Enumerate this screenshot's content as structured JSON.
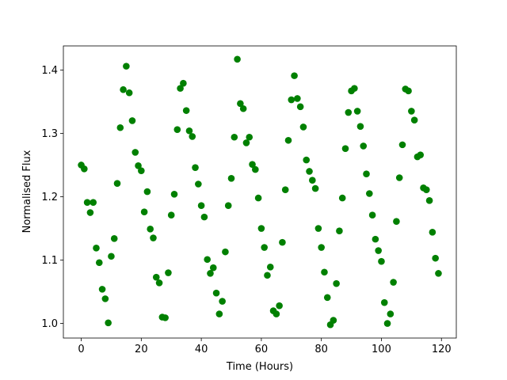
{
  "chart_data": {
    "type": "scatter",
    "xlabel": "Time (Hours)",
    "ylabel": "Normalised Flux",
    "color": "green",
    "x": [
      0,
      1,
      2,
      3,
      4,
      5,
      6,
      7,
      8,
      9,
      10,
      11,
      12,
      13,
      14,
      15,
      16,
      17,
      18,
      19,
      20,
      21,
      22,
      23,
      24,
      25,
      26,
      27,
      28,
      29,
      30,
      31,
      32,
      33,
      34,
      35,
      36,
      37,
      38,
      39,
      40,
      41,
      42,
      43,
      44,
      45,
      46,
      47,
      48,
      49,
      50,
      51,
      52,
      53,
      54,
      55,
      56,
      57,
      58,
      59,
      60,
      61,
      62,
      63,
      64,
      65,
      66,
      67,
      68,
      69,
      70,
      71,
      72,
      73,
      74,
      75,
      76,
      77,
      78,
      79,
      80,
      81,
      82,
      83,
      84,
      85,
      86,
      87,
      88,
      89,
      90,
      91,
      92,
      93,
      94,
      95,
      96,
      97,
      98,
      99,
      100,
      101,
      102,
      103,
      104,
      105,
      106,
      107,
      108,
      109,
      110,
      111,
      112,
      113,
      114,
      115,
      116,
      117,
      118,
      119
    ],
    "y": [
      1.25,
      1.244,
      1.191,
      1.175,
      1.191,
      1.119,
      1.096,
      1.054,
      1.039,
      1.001,
      1.106,
      1.134,
      1.221,
      1.309,
      1.369,
      1.406,
      1.364,
      1.32,
      1.27,
      1.249,
      1.241,
      1.176,
      1.208,
      1.149,
      1.135,
      1.073,
      1.064,
      1.01,
      1.009,
      1.08,
      1.171,
      1.204,
      1.306,
      1.371,
      1.379,
      1.336,
      1.304,
      1.295,
      1.246,
      1.22,
      1.186,
      1.168,
      1.101,
      1.079,
      1.088,
      1.048,
      1.015,
      1.035,
      1.113,
      1.186,
      1.229,
      1.294,
      1.417,
      1.347,
      1.339,
      1.285,
      1.294,
      1.251,
      1.243,
      1.198,
      1.15,
      1.12,
      1.076,
      1.089,
      1.02,
      1.015,
      1.028,
      1.128,
      1.211,
      1.289,
      1.353,
      1.391,
      1.355,
      1.342,
      1.31,
      1.258,
      1.24,
      1.226,
      1.213,
      1.15,
      1.12,
      1.081,
      1.041,
      0.998,
      1.005,
      1.063,
      1.146,
      1.198,
      1.276,
      1.333,
      1.367,
      1.371,
      1.335,
      1.311,
      1.28,
      1.236,
      1.205,
      1.171,
      1.133,
      1.115,
      1.098,
      1.033,
      1.0,
      1.015,
      1.065,
      1.161,
      1.23,
      1.282,
      1.37,
      1.367,
      1.335,
      1.321,
      1.263,
      1.266,
      1.214,
      1.211,
      1.194,
      1.144,
      1.103,
      1.079
    ],
    "xlim": [
      -5.95,
      124.95
    ],
    "ylim": [
      0.977,
      1.438
    ],
    "xticks": [
      0,
      20,
      40,
      60,
      80,
      100,
      120
    ],
    "yticks": [
      {
        "value": 1.0,
        "label": "1.0"
      },
      1.1,
      1.2,
      1.3,
      1.4
    ]
  }
}
